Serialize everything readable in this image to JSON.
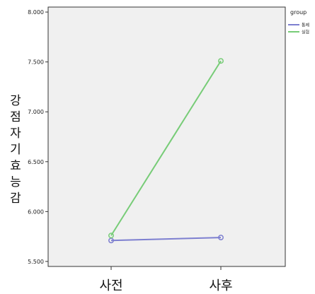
{
  "chart_data": {
    "type": "line",
    "categories": [
      "사전",
      "사후"
    ],
    "ylabel": "강점자기효능감",
    "xlabel": "",
    "ylim": [
      5.45,
      8.05
    ],
    "yticks": [
      "5.500",
      "6.000",
      "6.500",
      "7.000",
      "7.500",
      "8.000"
    ],
    "grid": false,
    "legend_title": "group",
    "legend_position": "top-right",
    "series": [
      {
        "name": "통제",
        "color": "#7d7fd0",
        "values": [
          5.71,
          5.74
        ]
      },
      {
        "name": "실험",
        "color": "#77cc77",
        "values": [
          5.76,
          7.51
        ]
      }
    ],
    "plot_background": "#f0f0f0"
  }
}
